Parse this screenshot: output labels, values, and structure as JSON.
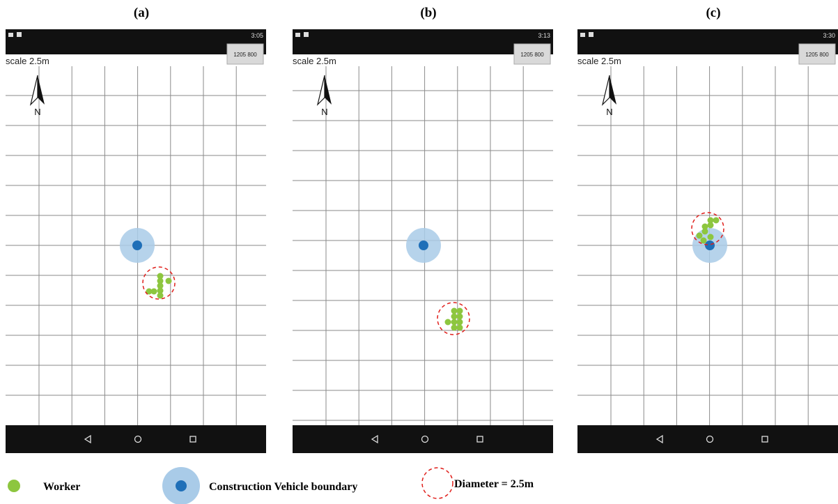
{
  "panels": [
    {
      "label": "(a)",
      "status_time": "3:05",
      "button": "1205 800",
      "scale": "scale 2.5m",
      "north": "N"
    },
    {
      "label": "(b)",
      "status_time": "3:13",
      "button": "1205 800",
      "scale": "scale 2.5m",
      "north": "N"
    },
    {
      "label": "(c)",
      "status_time": "3:30",
      "button": "1205 800",
      "scale": "scale 2.5m",
      "north": "N"
    }
  ],
  "legend": {
    "worker": "Worker",
    "vehicle": "Construction Vehicle boundary",
    "diameter": "Diameter = 2.5m"
  }
}
